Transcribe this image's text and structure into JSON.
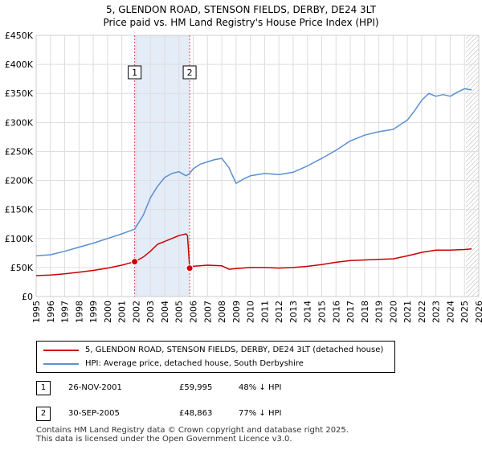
{
  "title_line1": "5, GLENDON ROAD, STENSON FIELDS, DERBY, DE24 3LT",
  "title_line2": "Price paid vs. HM Land Registry's House Price Index (HPI)",
  "colors": {
    "price_line": "#cc0000",
    "hpi_line": "#5b8fd0",
    "shade": "#e4ecf8",
    "grid": "#dddddd",
    "marker": "#cc0000"
  },
  "legend": {
    "price_label": "5, GLENDON ROAD, STENSON FIELDS, DERBY, DE24 3LT (detached house)",
    "hpi_label": "HPI: Average price, detached house, South Derbyshire"
  },
  "transactions": [
    {
      "id": "1",
      "date": "26-NOV-2001",
      "price": "£59,995",
      "hpi": "48% ↓ HPI"
    },
    {
      "id": "2",
      "date": "30-SEP-2005",
      "price": "£48,863",
      "hpi": "77% ↓ HPI"
    }
  ],
  "footer": {
    "line1": "Contains HM Land Registry data © Crown copyright and database right 2025.",
    "line2": "This data is licensed under the Open Government Licence v3.0."
  },
  "chart_data": {
    "type": "line",
    "title": "5, GLENDON ROAD, STENSON FIELDS, DERBY, DE24 3LT — Price paid vs. HM Land Registry's House Price Index (HPI)",
    "xlabel": "",
    "ylabel": "",
    "xlim": [
      1995,
      2026
    ],
    "ylim": [
      0,
      450000
    ],
    "y_ticks": [
      0,
      50000,
      100000,
      150000,
      200000,
      250000,
      300000,
      350000,
      400000,
      450000
    ],
    "y_tick_labels": [
      "£0",
      "£50K",
      "£100K",
      "£150K",
      "£200K",
      "£250K",
      "£300K",
      "£350K",
      "£400K",
      "£450K"
    ],
    "x_ticks": [
      1995,
      1996,
      1997,
      1998,
      1999,
      2000,
      2001,
      2002,
      2003,
      2004,
      2005,
      2006,
      2007,
      2008,
      2009,
      2010,
      2011,
      2012,
      2013,
      2014,
      2015,
      2016,
      2017,
      2018,
      2019,
      2020,
      2021,
      2022,
      2023,
      2024,
      2025,
      2026
    ],
    "x_tick_labels": [
      "1995",
      "1996",
      "1997",
      "1998",
      "1999",
      "2000",
      "2001",
      "2002",
      "2003",
      "2004",
      "2005",
      "2006",
      "2007",
      "2008",
      "2009",
      "2010",
      "2011",
      "2012",
      "2013",
      "2014",
      "2015",
      "2016",
      "2017",
      "2018",
      "2019",
      "2020",
      "2021",
      "2022",
      "2023",
      "2024",
      "2025",
      "2026"
    ],
    "grid": true,
    "shaded_range": [
      2001.9,
      2005.75
    ],
    "hatched_from": 2025.1,
    "series": [
      {
        "name": "5, GLENDON ROAD, STENSON FIELDS, DERBY, DE24 3LT (detached house)",
        "x": [
          1995,
          1996,
          1997,
          1998,
          1999,
          2000,
          2001,
          2001.9,
          2002.5,
          2003,
          2003.5,
          2004,
          2004.5,
          2005,
          2005.5,
          2005.6,
          2005.75,
          2006,
          2007,
          2008,
          2008.5,
          2009,
          2010,
          2011,
          2012,
          2013,
          2014,
          2015,
          2016,
          2017,
          2018,
          2019,
          2020,
          2021,
          2022,
          2023,
          2024,
          2025,
          2025.5
        ],
        "values": [
          36000,
          37000,
          39000,
          42000,
          45000,
          49000,
          54000,
          59995,
          68000,
          78000,
          90000,
          95000,
          100000,
          105000,
          108000,
          105000,
          48863,
          52000,
          54000,
          53000,
          47000,
          48000,
          50000,
          50000,
          49000,
          50000,
          52000,
          55000,
          59000,
          62000,
          63000,
          64000,
          65000,
          70000,
          76000,
          80000,
          80000,
          81000,
          82000
        ]
      },
      {
        "name": "HPI: Average price, detached house, South Derbyshire",
        "x": [
          1995,
          1996,
          1997,
          1998,
          1999,
          2000,
          2001,
          2001.9,
          2002.5,
          2003,
          2003.5,
          2004,
          2004.5,
          2005,
          2005.5,
          2005.75,
          2006,
          2006.5,
          2007,
          2007.5,
          2008,
          2008.5,
          2009,
          2009.5,
          2010,
          2011,
          2012,
          2013,
          2014,
          2015,
          2016,
          2017,
          2018,
          2019,
          2020,
          2021,
          2021.5,
          2022,
          2022.5,
          2023,
          2023.5,
          2024,
          2024.5,
          2025,
          2025.5
        ],
        "values": [
          70000,
          72000,
          78000,
          85000,
          92000,
          100000,
          108000,
          116000,
          140000,
          170000,
          190000,
          205000,
          212000,
          215000,
          208000,
          212000,
          220000,
          228000,
          232000,
          236000,
          238000,
          222000,
          195000,
          202000,
          208000,
          212000,
          210000,
          214000,
          225000,
          238000,
          252000,
          268000,
          278000,
          284000,
          288000,
          304000,
          320000,
          338000,
          350000,
          345000,
          348000,
          345000,
          352000,
          358000,
          356000
        ]
      }
    ],
    "sales": [
      {
        "label": "1",
        "x": 2001.9,
        "y": 59995
      },
      {
        "label": "2",
        "x": 2005.75,
        "y": 48863
      }
    ]
  }
}
